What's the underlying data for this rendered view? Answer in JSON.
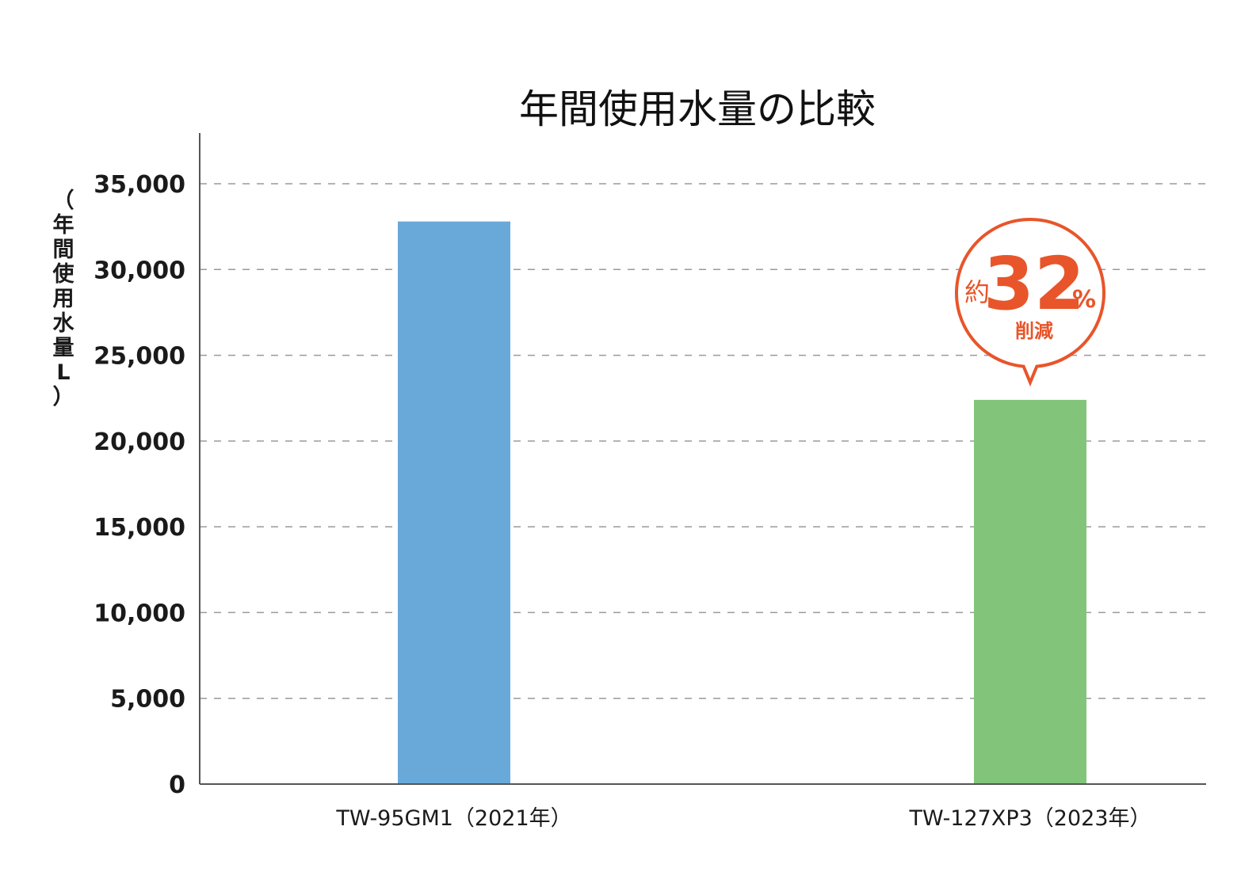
{
  "colors": {
    "bar_1": "#69a9da",
    "bar_2": "#82c57a",
    "accent": "#e8552a",
    "grid": "#9a9a9a",
    "axis": "#555555"
  },
  "chart_data": {
    "type": "bar",
    "title": "年間使用水量の比較",
    "ylabel": "（年間使用水量L）",
    "ylabel_chars": [
      "（",
      "年",
      "間",
      "使",
      "用",
      "水",
      "量",
      "L",
      "）"
    ],
    "xlabel": "",
    "categories": [
      "TW-95GM1（2021年）",
      "TW-127XP3（2023年）"
    ],
    "values": [
      32800,
      22400
    ],
    "ylim": [
      0,
      35000
    ],
    "yticks": [
      0,
      5000,
      10000,
      15000,
      20000,
      25000,
      30000,
      35000
    ],
    "ytick_labels": [
      "0",
      "5,000",
      "10,000",
      "15,000",
      "20,000",
      "25,000",
      "30,000",
      "35,000"
    ],
    "grid": true,
    "legend": "none",
    "annotation": {
      "target_category": "TW-127XP3（2023年）",
      "prefix": "約",
      "value": "32",
      "unit": "%",
      "label": "削減"
    }
  }
}
